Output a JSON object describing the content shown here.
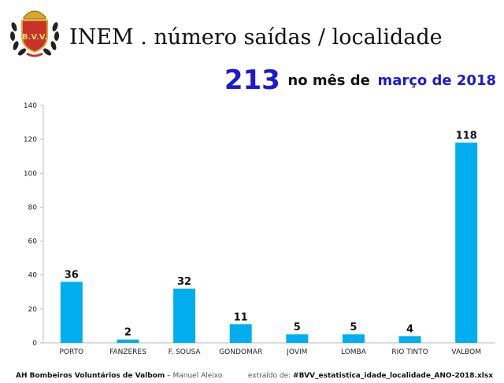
{
  "header": {
    "title": "INEM . número saídas / localidade",
    "total": "213",
    "total_text": "no mês de",
    "period": "março de 2018"
  },
  "logo": {
    "text": "B.V.V."
  },
  "colors": {
    "bar": "#00AEEF",
    "total": "#1A1AD6"
  },
  "chart_data": {
    "type": "bar",
    "categories": [
      "PORTO",
      "FANZERES",
      "F. SOUSA",
      "GONDOMAR",
      "JOVIM",
      "LOMBA",
      "RIO TINTO",
      "VALBOM"
    ],
    "values": [
      36,
      2,
      32,
      11,
      5,
      5,
      4,
      118
    ],
    "ylim": [
      0,
      140
    ],
    "yticks": [
      0,
      20,
      40,
      60,
      80,
      100,
      120,
      140
    ],
    "data_labels": true,
    "grid": false,
    "legend": "none"
  },
  "footer": {
    "left_bold": "AH Bombeiros Voluntários de Valbom",
    "left_sep": " – ",
    "left_light": "Manuel Aleixo",
    "right_light": "extraído de: ",
    "right_bold": "#BVV_estatistica_idade_localidade_ANO-2018.xlsx"
  }
}
